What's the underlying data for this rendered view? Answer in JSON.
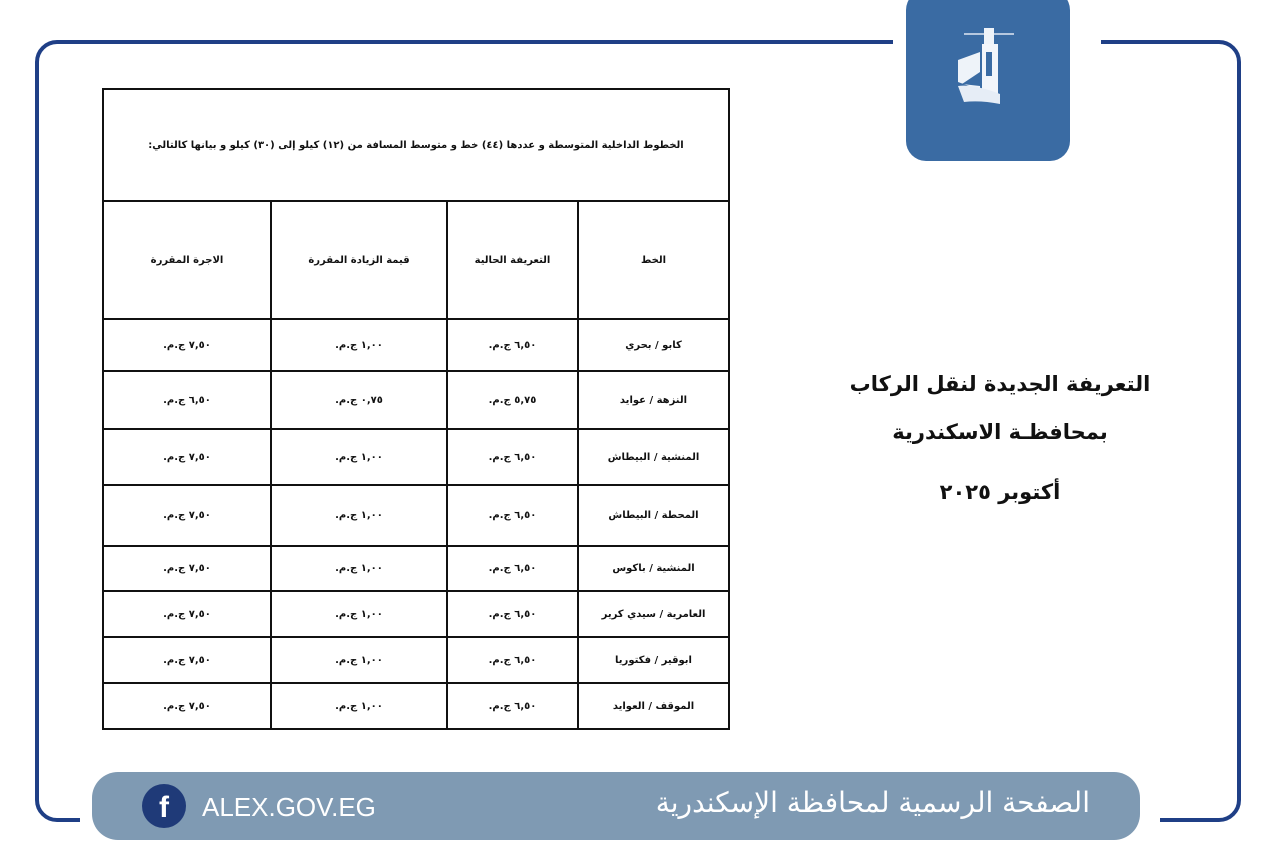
{
  "brand": {
    "primary": "#1f3f86",
    "logo_bg": "#3a6ba3",
    "footer_bg": "#7f9ab3"
  },
  "table": {
    "title": "الخطوط الداخلية المتوسطة و عددها (٤٤) خط و متوسط المسافة من (١٢) كيلو إلى (٣٠) كيلو و بيانها كالتالي:",
    "headers": [
      "الخط",
      "التعريفة الحالية",
      "قيمة الزيادة المقررة",
      "الاجرة المقررة"
    ],
    "rows": [
      [
        "كابو / بحري",
        "٦,٥٠ ج.م.",
        "١,٠٠ ج.م.",
        "٧,٥٠ ج.م."
      ],
      [
        "النزهة / عوايد",
        "٥,٧٥ ج.م.",
        "٠,٧٥ ج.م.",
        "٦,٥٠ ج.م."
      ],
      [
        "المنشية / البيطاش",
        "٦,٥٠ ج.م.",
        "١,٠٠ ج.م.",
        "٧,٥٠ ج.م."
      ],
      [
        "المحطة / البيطاش",
        "٦,٥٠ ج.م.",
        "١,٠٠ ج.م.",
        "٧,٥٠ ج.م."
      ],
      [
        "المنشية / باكوس",
        "٦,٥٠ ج.م.",
        "١,٠٠ ج.م.",
        "٧,٥٠ ج.م."
      ],
      [
        "العامرية / سيدي كرير",
        "٦,٥٠ ج.م.",
        "١,٠٠ ج.م.",
        "٧,٥٠ ج.م."
      ],
      [
        "ابوقير / فكتوريا",
        "٦,٥٠ ج.م.",
        "١,٠٠ ج.م.",
        "٧,٥٠ ج.م."
      ],
      [
        "الموقف / العوايد",
        "٦,٥٠ ج.م.",
        "١,٠٠ ج.م.",
        "٧,٥٠ ج.م."
      ]
    ]
  },
  "side": {
    "line1": "التعريفة الجديدة لنقل الركاب",
    "line2": "بمحافظـة الاسكندرية",
    "date": "أكتوبر ٢٠٢٥"
  },
  "footer": {
    "site": "ALEX.GOV.EG",
    "title": "الصفحة الرسمية لمحافظة الإسكندرية",
    "social_icon": "facebook-icon"
  }
}
